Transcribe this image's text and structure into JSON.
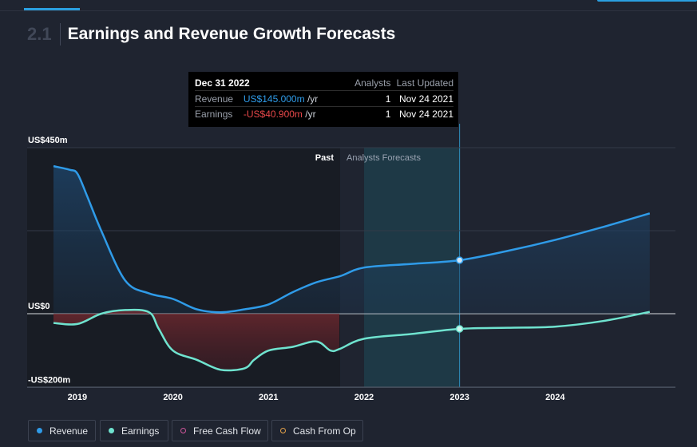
{
  "section": {
    "number": "2.1",
    "title": "Earnings and Revenue Growth Forecasts"
  },
  "tooltip": {
    "date": "Dec 31 2022",
    "col_analysts": "Analysts",
    "col_updated": "Last Updated",
    "rows": [
      {
        "name": "Revenue",
        "value": "US$145.000m",
        "unit": "/yr",
        "analysts": "1",
        "updated": "Nov 24 2021"
      },
      {
        "name": "Earnings",
        "value": "-US$40.900m",
        "unit": "/yr",
        "analysts": "1",
        "updated": "Nov 24 2021"
      }
    ]
  },
  "legend": [
    {
      "label": "Revenue",
      "color": "#2f9be8",
      "filled": true
    },
    {
      "label": "Earnings",
      "color": "#6fe3cf",
      "filled": true
    },
    {
      "label": "Free Cash Flow",
      "color": "#d0569b",
      "filled": false
    },
    {
      "label": "Cash From Op",
      "color": "#e5a24a",
      "filled": false
    }
  ],
  "chart_data": {
    "type": "line",
    "y_tick_labels": [
      "US$450m",
      "US$0",
      "-US$200m"
    ],
    "ylim": [
      -200,
      450
    ],
    "xlim": [
      2018.75,
      2025.0
    ],
    "x_tick_labels": [
      "2019",
      "2020",
      "2021",
      "2022",
      "2023",
      "2024"
    ],
    "region_labels": {
      "past": "Past",
      "forecast": "Analysts Forecasts"
    },
    "forecast_start": 2021.75,
    "highlight_x": 2023.0,
    "colors": {
      "revenue": "#2f9be8",
      "earnings": "#6fe3cf",
      "earnings_negative_fill": "#8a2c32"
    },
    "series": [
      {
        "name": "Revenue",
        "x": [
          2018.75,
          2018.92,
          2019.0,
          2019.1,
          2019.25,
          2019.5,
          2019.75,
          2020.0,
          2020.25,
          2020.5,
          2020.75,
          2021.0,
          2021.25,
          2021.5,
          2021.75,
          2022.0,
          2022.5,
          2023.0,
          2023.5,
          2024.0,
          2024.5,
          2024.99
        ],
        "y": [
          400,
          390,
          380,
          320,
          225,
          90,
          55,
          40,
          12,
          4,
          12,
          25,
          58,
          85,
          102,
          125,
          135,
          145,
          170,
          200,
          235,
          272
        ]
      },
      {
        "name": "Earnings",
        "x": [
          2018.75,
          2019.0,
          2019.25,
          2019.5,
          2019.75,
          2019.85,
          2020.0,
          2020.25,
          2020.5,
          2020.75,
          2020.85,
          2021.0,
          2021.25,
          2021.5,
          2021.65,
          2021.75,
          2022.0,
          2022.5,
          2023.0,
          2023.5,
          2024.0,
          2024.5,
          2024.99
        ],
        "y": [
          -25,
          -28,
          0,
          10,
          4,
          -40,
          -100,
          -125,
          -152,
          -148,
          -125,
          -100,
          -90,
          -75,
          -100,
          -95,
          -68,
          -55,
          -41,
          -38,
          -35,
          -20,
          5
        ]
      }
    ]
  }
}
